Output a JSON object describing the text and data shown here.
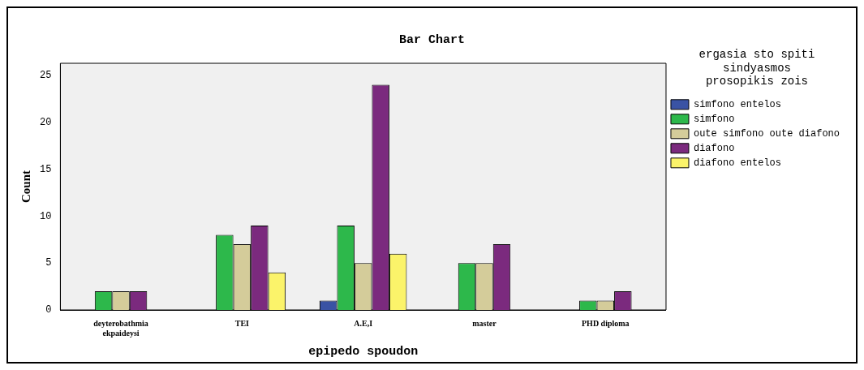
{
  "chart_data": {
    "type": "bar",
    "title": "Bar Chart",
    "xlabel": "epipedo spoudon",
    "ylabel": "Count",
    "legend_title": "ergasia sto spiti sindyasmos prosopikis zois",
    "legend": "right",
    "categories": [
      "deyterobathmia ekpaideysi",
      "TEI",
      "A.E,I",
      "master",
      "PHD diploma"
    ],
    "series": [
      {
        "name": "simfono entelos",
        "color": "#3a53a4",
        "values": [
          0,
          0,
          1,
          0,
          0
        ]
      },
      {
        "name": "simfono",
        "color": "#2db84b",
        "values": [
          2,
          8,
          9,
          5,
          1
        ]
      },
      {
        "name": "oute simfono oute diafono",
        "color": "#d4cc9a",
        "values": [
          2,
          7,
          5,
          5,
          1
        ]
      },
      {
        "name": "diafono",
        "color": "#7b2a7e",
        "values": [
          2,
          9,
          24,
          7,
          2
        ]
      },
      {
        "name": "diafono entelos",
        "color": "#fbf36a",
        "values": [
          0,
          4,
          6,
          0,
          0
        ]
      }
    ],
    "ylim": [
      0,
      26.3
    ],
    "yticks": [
      0,
      5,
      10,
      15,
      20,
      25
    ],
    "grid": false
  }
}
